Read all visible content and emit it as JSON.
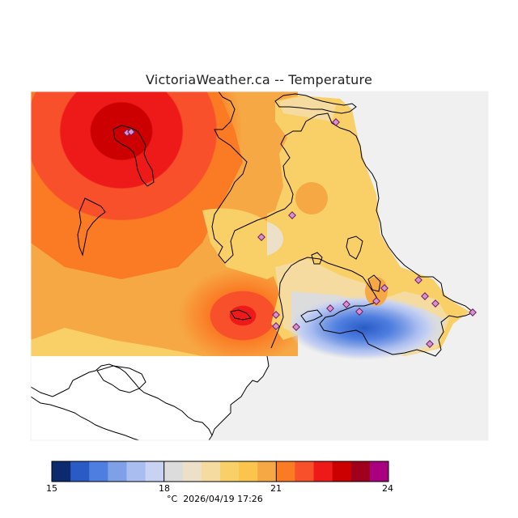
{
  "title": "VictoriaWeather.ca -- Temperature",
  "legend": {
    "tick_labels": [
      "15",
      "18",
      "21",
      "24"
    ],
    "units": "°C",
    "timestamp": "2026/04/19 17:26",
    "colors": [
      "#0c2a6e",
      "#2a5bc4",
      "#4e7ee0",
      "#7f9fe6",
      "#a9bdf0",
      "#c8d2f2",
      "#dcdcdc",
      "#ece0c8",
      "#f6dba0",
      "#f9d068",
      "#fbc44c",
      "#f6a844",
      "#fb7a24",
      "#f7502a",
      "#ee1a1a",
      "#cc0000",
      "#a0001c",
      "#a8007e"
    ]
  },
  "colors": {
    "ocean": "#f0f0f0",
    "coast_line": "#000000",
    "station_fill": "#d890d0",
    "station_stroke": "#6a2060"
  }
}
